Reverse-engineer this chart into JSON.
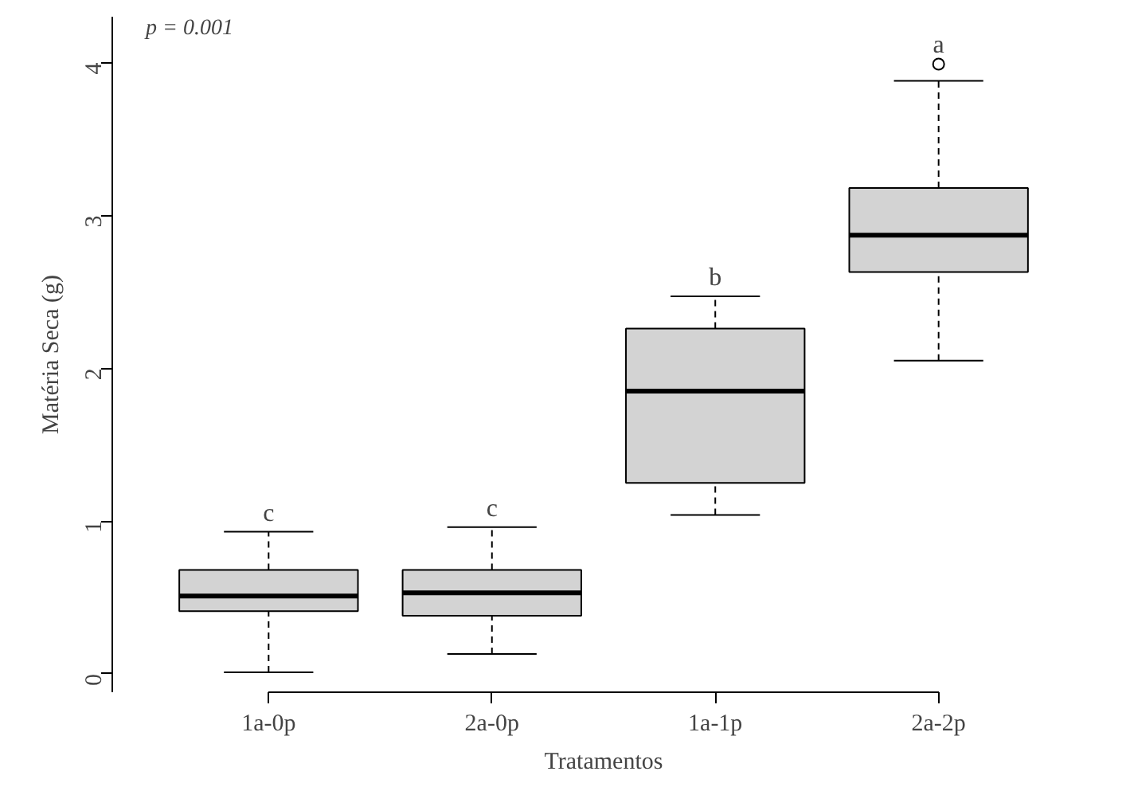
{
  "chart_data": {
    "type": "box",
    "xlabel": "Tratamentos",
    "ylabel": "Matéria Seca (g)",
    "categories": [
      "1a-0p",
      "2a-0p",
      "1a-1p",
      "2a-2p"
    ],
    "boxes": [
      {
        "low": 0.01,
        "q1": 0.41,
        "median": 0.51,
        "q3": 0.68,
        "high": 0.93
      },
      {
        "low": 0.13,
        "q1": 0.38,
        "median": 0.53,
        "q3": 0.68,
        "high": 0.96
      },
      {
        "low": 1.04,
        "q1": 1.25,
        "median": 1.85,
        "q3": 2.26,
        "high": 2.47
      },
      {
        "low": 2.05,
        "q1": 2.63,
        "median": 2.87,
        "q3": 3.18,
        "high": 3.88,
        "outliers": [
          3.99
        ]
      }
    ],
    "color": "#d3d3d3",
    "ylim": [
      -0.12,
      4.3
    ],
    "yticks": [
      0,
      1,
      2,
      3,
      4
    ],
    "grid": false,
    "annotations": [
      "p = 0.001",
      "c",
      "c",
      "b",
      "a"
    ]
  }
}
